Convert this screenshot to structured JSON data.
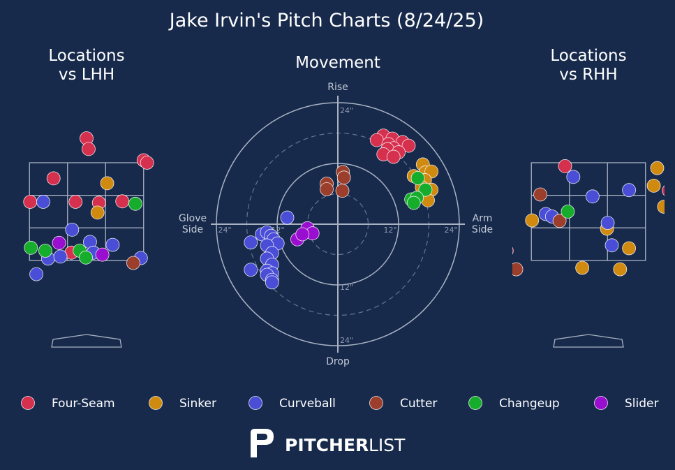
{
  "title": "Jake Irvin's Pitch Charts (8/24/25)",
  "colors": {
    "background": "#172a4c",
    "text": "#ffffff",
    "muted": "#c4cad6",
    "grid": "#a9b2c2",
    "Four-Seam": "#d6304f",
    "Sinker": "#d08a10",
    "Curveball": "#4a4ed6",
    "Cutter": "#9c3e2c",
    "Changeup": "#16ad2c",
    "Slider": "#9a0ed0"
  },
  "brand": {
    "bold": "PITCHER",
    "light": "LIST"
  },
  "legend": [
    "Four-Seam",
    "Sinker",
    "Curveball",
    "Cutter",
    "Changeup",
    "Slider"
  ],
  "chart_data": [
    {
      "type": "scatter",
      "title": "Locations\nvs LHH",
      "xlabel": "",
      "ylabel": "",
      "units": "feet (catcher view, plate_x / plate_z)",
      "xlim": [
        -1.9,
        1.9
      ],
      "ylim": [
        0.4,
        4.4
      ],
      "strike_zone": {
        "x": [
          -0.83,
          0.83
        ],
        "z": [
          1.5,
          3.5
        ]
      },
      "points": [
        {
          "pitch": "Four-Seam",
          "x": 0.0,
          "z": 4.0
        },
        {
          "pitch": "Four-Seam",
          "x": 0.03,
          "z": 3.78
        },
        {
          "pitch": "Four-Seam",
          "x": 0.83,
          "z": 3.55
        },
        {
          "pitch": "Four-Seam",
          "x": 0.88,
          "z": 3.5
        },
        {
          "pitch": "Four-Seam",
          "x": -0.48,
          "z": 3.18
        },
        {
          "pitch": "Four-Seam",
          "x": -1.46,
          "z": 2.95
        },
        {
          "pitch": "Four-Seam",
          "x": -0.82,
          "z": 2.7
        },
        {
          "pitch": "Four-Seam",
          "x": -0.16,
          "z": 2.7
        },
        {
          "pitch": "Four-Seam",
          "x": 0.18,
          "z": 2.68
        },
        {
          "pitch": "Four-Seam",
          "x": 0.52,
          "z": 2.71
        },
        {
          "pitch": "Four-Seam",
          "x": -0.22,
          "z": 1.66
        },
        {
          "pitch": "Sinker",
          "x": 0.3,
          "z": 3.08
        },
        {
          "pitch": "Sinker",
          "x": 0.16,
          "z": 2.48
        },
        {
          "pitch": "Curveball",
          "x": -0.63,
          "z": 2.7
        },
        {
          "pitch": "Curveball",
          "x": -1.3,
          "z": 1.97
        },
        {
          "pitch": "Curveball",
          "x": -0.21,
          "z": 2.13
        },
        {
          "pitch": "Curveball",
          "x": 0.05,
          "z": 1.88
        },
        {
          "pitch": "Curveball",
          "x": 0.38,
          "z": 1.82
        },
        {
          "pitch": "Curveball",
          "x": -1.45,
          "z": 1.6
        },
        {
          "pitch": "Curveball",
          "x": -0.56,
          "z": 1.54
        },
        {
          "pitch": "Curveball",
          "x": -0.38,
          "z": 1.58
        },
        {
          "pitch": "Curveball",
          "x": 0.1,
          "z": 1.66
        },
        {
          "pitch": "Curveball",
          "x": 0.79,
          "z": 1.55
        },
        {
          "pitch": "Curveball",
          "x": -0.73,
          "z": 1.22
        },
        {
          "pitch": "Cutter",
          "x": -1.45,
          "z": 1.2
        },
        {
          "pitch": "Cutter",
          "x": 0.68,
          "z": 1.45
        },
        {
          "pitch": "Changeup",
          "x": 0.71,
          "z": 2.66
        },
        {
          "pitch": "Changeup",
          "x": -0.81,
          "z": 1.76
        },
        {
          "pitch": "Changeup",
          "x": -0.6,
          "z": 1.7
        },
        {
          "pitch": "Changeup",
          "x": -0.1,
          "z": 1.7
        },
        {
          "pitch": "Changeup",
          "x": -0.01,
          "z": 1.56
        },
        {
          "pitch": "Changeup",
          "x": -1.33,
          "z": 1.68
        },
        {
          "pitch": "Slider",
          "x": -0.4,
          "z": 1.86
        },
        {
          "pitch": "Slider",
          "x": 0.23,
          "z": 1.62
        }
      ]
    },
    {
      "type": "scatter",
      "title": "Movement",
      "units": "inches of break (pitcher view)",
      "xlim": [
        -24,
        24
      ],
      "ylim": [
        -24,
        24
      ],
      "rings": [
        12,
        24
      ],
      "tick_labels": [
        "24\"",
        "12\"",
        "12\"",
        "24\"",
        "24\"",
        "12\"",
        "24\""
      ],
      "axis_labels": {
        "top": "Rise",
        "bottom": "Drop",
        "left": "Glove\nSide",
        "right": "Arm\nSide"
      },
      "points": [
        {
          "pitch": "Four-Seam",
          "x": 9.0,
          "y": 17.5
        },
        {
          "pitch": "Four-Seam",
          "x": 10.8,
          "y": 16.9
        },
        {
          "pitch": "Four-Seam",
          "x": 7.7,
          "y": 16.6
        },
        {
          "pitch": "Four-Seam",
          "x": 10.0,
          "y": 15.8
        },
        {
          "pitch": "Four-Seam",
          "x": 12.8,
          "y": 16.2
        },
        {
          "pitch": "Four-Seam",
          "x": 14.0,
          "y": 15.5
        },
        {
          "pitch": "Four-Seam",
          "x": 11.0,
          "y": 15.0
        },
        {
          "pitch": "Four-Seam",
          "x": 9.8,
          "y": 14.8
        },
        {
          "pitch": "Four-Seam",
          "x": 12.0,
          "y": 14.2
        },
        {
          "pitch": "Four-Seam",
          "x": 9.0,
          "y": 13.8
        },
        {
          "pitch": "Four-Seam",
          "x": 11.0,
          "y": 13.3
        },
        {
          "pitch": "Sinker",
          "x": 16.8,
          "y": 11.8
        },
        {
          "pitch": "Sinker",
          "x": 15.0,
          "y": 9.5
        },
        {
          "pitch": "Sinker",
          "x": 17.3,
          "y": 10.2
        },
        {
          "pitch": "Sinker",
          "x": 18.5,
          "y": 10.4
        },
        {
          "pitch": "Sinker",
          "x": 17.2,
          "y": 8.7
        },
        {
          "pitch": "Sinker",
          "x": 16.6,
          "y": 7.3
        },
        {
          "pitch": "Sinker",
          "x": 18.5,
          "y": 6.8
        },
        {
          "pitch": "Sinker",
          "x": 17.8,
          "y": 4.7
        },
        {
          "pitch": "Curveball",
          "x": -10.0,
          "y": 1.3
        },
        {
          "pitch": "Curveball",
          "x": -15.0,
          "y": -2.0
        },
        {
          "pitch": "Curveball",
          "x": -14.0,
          "y": -1.6
        },
        {
          "pitch": "Curveball",
          "x": -13.2,
          "y": -2.3
        },
        {
          "pitch": "Curveball",
          "x": -12.7,
          "y": -3.0
        },
        {
          "pitch": "Curveball",
          "x": -11.9,
          "y": -3.8
        },
        {
          "pitch": "Curveball",
          "x": -17.2,
          "y": -3.6
        },
        {
          "pitch": "Curveball",
          "x": -14.0,
          "y": -4.2
        },
        {
          "pitch": "Curveball",
          "x": -13.0,
          "y": -5.7
        },
        {
          "pitch": "Curveball",
          "x": -14.0,
          "y": -6.8
        },
        {
          "pitch": "Curveball",
          "x": -13.0,
          "y": -8.0
        },
        {
          "pitch": "Curveball",
          "x": -14.0,
          "y": -9.2
        },
        {
          "pitch": "Curveball",
          "x": -13.0,
          "y": -9.7
        },
        {
          "pitch": "Curveball",
          "x": -17.2,
          "y": -9.0
        },
        {
          "pitch": "Curveball",
          "x": -14.0,
          "y": -10.0
        },
        {
          "pitch": "Curveball",
          "x": -13.0,
          "y": -11.0
        },
        {
          "pitch": "Curveball",
          "x": -13.0,
          "y": -11.5
        },
        {
          "pitch": "Cutter",
          "x": 1.0,
          "y": 10.3
        },
        {
          "pitch": "Cutter",
          "x": -2.2,
          "y": 8.0
        },
        {
          "pitch": "Cutter",
          "x": 0.9,
          "y": 6.6
        },
        {
          "pitch": "Cutter",
          "x": -2.2,
          "y": 6.9
        },
        {
          "pitch": "Cutter",
          "x": 1.2,
          "y": 9.2
        },
        {
          "pitch": "Changeup",
          "x": 15.8,
          "y": 9.1
        },
        {
          "pitch": "Changeup",
          "x": 17.3,
          "y": 6.8
        },
        {
          "pitch": "Changeup",
          "x": 14.5,
          "y": 4.9
        },
        {
          "pitch": "Changeup",
          "x": 15.6,
          "y": 5.2
        },
        {
          "pitch": "Changeup",
          "x": 15.0,
          "y": 4.2
        },
        {
          "pitch": "Slider",
          "x": -6.0,
          "y": -0.8
        },
        {
          "pitch": "Slider",
          "x": -5.0,
          "y": -1.8
        },
        {
          "pitch": "Slider",
          "x": -8.0,
          "y": -3.0
        },
        {
          "pitch": "Slider",
          "x": -7.0,
          "y": -2.0
        }
      ]
    },
    {
      "type": "scatter",
      "title": "Locations\nvs RHH",
      "xlabel": "",
      "ylabel": "",
      "units": "feet (catcher view, plate_x / plate_z)",
      "xlim": [
        -1.9,
        1.9
      ],
      "ylim": [
        0.4,
        4.4
      ],
      "strike_zone": {
        "x": [
          -0.83,
          0.83
        ],
        "z": [
          1.5,
          3.5
        ]
      },
      "points": [
        {
          "pitch": "Four-Seam",
          "x": -0.34,
          "z": 3.43
        },
        {
          "pitch": "Four-Seam",
          "x": 1.17,
          "z": 2.93
        },
        {
          "pitch": "Four-Seam",
          "x": -1.19,
          "z": 1.7
        },
        {
          "pitch": "Sinker",
          "x": 1.35,
          "z": 3.92
        },
        {
          "pitch": "Sinker",
          "x": 1.35,
          "z": 3.63
        },
        {
          "pitch": "Sinker",
          "x": 1.0,
          "z": 3.39
        },
        {
          "pitch": "Sinker",
          "x": 0.95,
          "z": 3.03
        },
        {
          "pitch": "Sinker",
          "x": 1.1,
          "z": 2.6
        },
        {
          "pitch": "Sinker",
          "x": -0.82,
          "z": 2.32
        },
        {
          "pitch": "Sinker",
          "x": 0.27,
          "z": 2.15
        },
        {
          "pitch": "Sinker",
          "x": 0.59,
          "z": 1.75
        },
        {
          "pitch": "Sinker",
          "x": -0.09,
          "z": 1.35
        },
        {
          "pitch": "Sinker",
          "x": 0.46,
          "z": 1.32
        },
        {
          "pitch": "Curveball",
          "x": -0.22,
          "z": 3.21
        },
        {
          "pitch": "Curveball",
          "x": 0.59,
          "z": 2.94
        },
        {
          "pitch": "Curveball",
          "x": -1.21,
          "z": 2.74
        },
        {
          "pitch": "Curveball",
          "x": 0.06,
          "z": 2.81
        },
        {
          "pitch": "Curveball",
          "x": -0.62,
          "z": 2.45
        },
        {
          "pitch": "Curveball",
          "x": -0.53,
          "z": 2.4
        },
        {
          "pitch": "Curveball",
          "x": 0.28,
          "z": 2.27
        },
        {
          "pitch": "Curveball",
          "x": 0.34,
          "z": 1.81
        },
        {
          "pitch": "Curveball",
          "x": -1.43,
          "z": 1.34
        },
        {
          "pitch": "Cutter",
          "x": -0.7,
          "z": 2.85
        },
        {
          "pitch": "Cutter",
          "x": -0.42,
          "z": 2.31
        },
        {
          "pitch": "Cutter",
          "x": -1.45,
          "z": 2.14
        },
        {
          "pitch": "Cutter",
          "x": -1.05,
          "z": 1.32
        },
        {
          "pitch": "Changeup",
          "x": -0.3,
          "z": 2.5
        },
        {
          "pitch": "Slider",
          "x": -1.22,
          "z": 1.94
        },
        {
          "pitch": "Slider",
          "x": -1.21,
          "z": 1.34
        }
      ]
    }
  ]
}
